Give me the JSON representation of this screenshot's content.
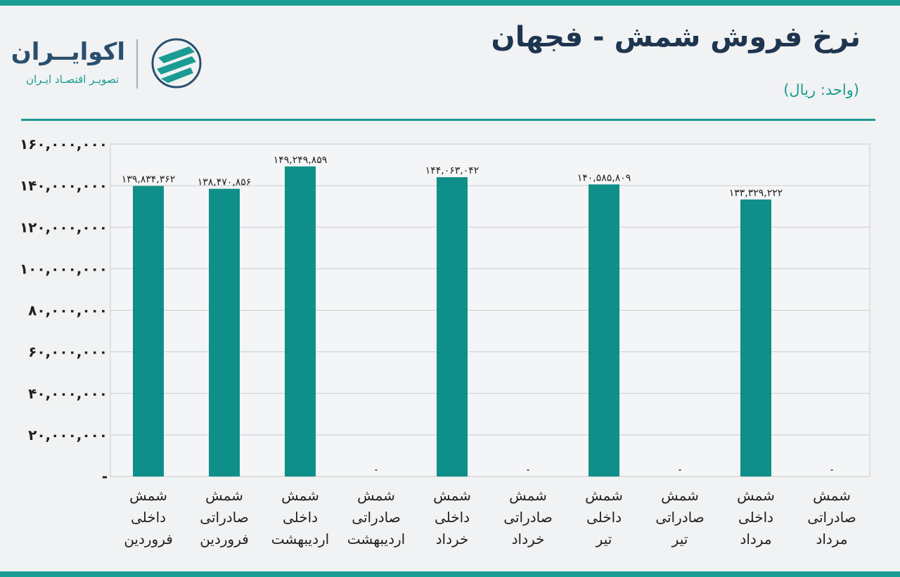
{
  "header": {
    "title": "نرخ فروش شمش - فجهان",
    "unit": "(واحد: ریال)"
  },
  "brand": {
    "name": "اکوایــران",
    "tagline": "تصویـر اقتصـاد ایـران",
    "icon": "ecoiran-logo-icon",
    "accent_color": "#1a9b93",
    "dark_color": "#2a4f6e"
  },
  "chart_data": {
    "type": "bar",
    "categories": [
      [
        "شمش",
        "داخلی",
        "فروردین"
      ],
      [
        "شمش",
        "صادراتی",
        "فروردین"
      ],
      [
        "شمش",
        "داخلی",
        "اردیبهشت"
      ],
      [
        "شمش",
        "صادراتی",
        "اردیبهشت"
      ],
      [
        "شمش",
        "داخلی",
        "خرداد"
      ],
      [
        "شمش",
        "صادراتی",
        "خرداد"
      ],
      [
        "شمش",
        "داخلی",
        "تیر"
      ],
      [
        "شمش",
        "صادراتی",
        "تیر"
      ],
      [
        "شمش",
        "داخلی",
        "مرداد"
      ],
      [
        "شمش",
        "صادراتی",
        "مرداد"
      ]
    ],
    "values": [
      139834362,
      138470856,
      149249859,
      0,
      144063042,
      0,
      140585809,
      0,
      133329222,
      0
    ],
    "data_labels": [
      "۱۳۹,۸۳۴,۳۶۲",
      "۱۳۸,۴۷۰,۸۵۶",
      "۱۴۹,۲۴۹,۸۵۹",
      "-",
      "۱۴۴,۰۶۳,۰۴۲",
      "-",
      "۱۴۰,۵۸۵,۸۰۹",
      "-",
      "۱۳۳,۳۲۹,۲۲۲",
      "-"
    ],
    "ylim": [
      0,
      160000000
    ],
    "y_ticks": [
      0,
      20000000,
      40000000,
      60000000,
      80000000,
      100000000,
      120000000,
      140000000,
      160000000
    ],
    "y_tick_labels": [
      "-",
      "۲۰,۰۰۰,۰۰۰",
      "۴۰,۰۰۰,۰۰۰",
      "۶۰,۰۰۰,۰۰۰",
      "۸۰,۰۰۰,۰۰۰",
      "۱۰۰,۰۰۰,۰۰۰",
      "۱۲۰,۰۰۰,۰۰۰",
      "۱۴۰,۰۰۰,۰۰۰",
      "۱۶۰,۰۰۰,۰۰۰"
    ],
    "grid": true,
    "bar_color": "#0f8f89",
    "xlabel": "",
    "ylabel": ""
  }
}
